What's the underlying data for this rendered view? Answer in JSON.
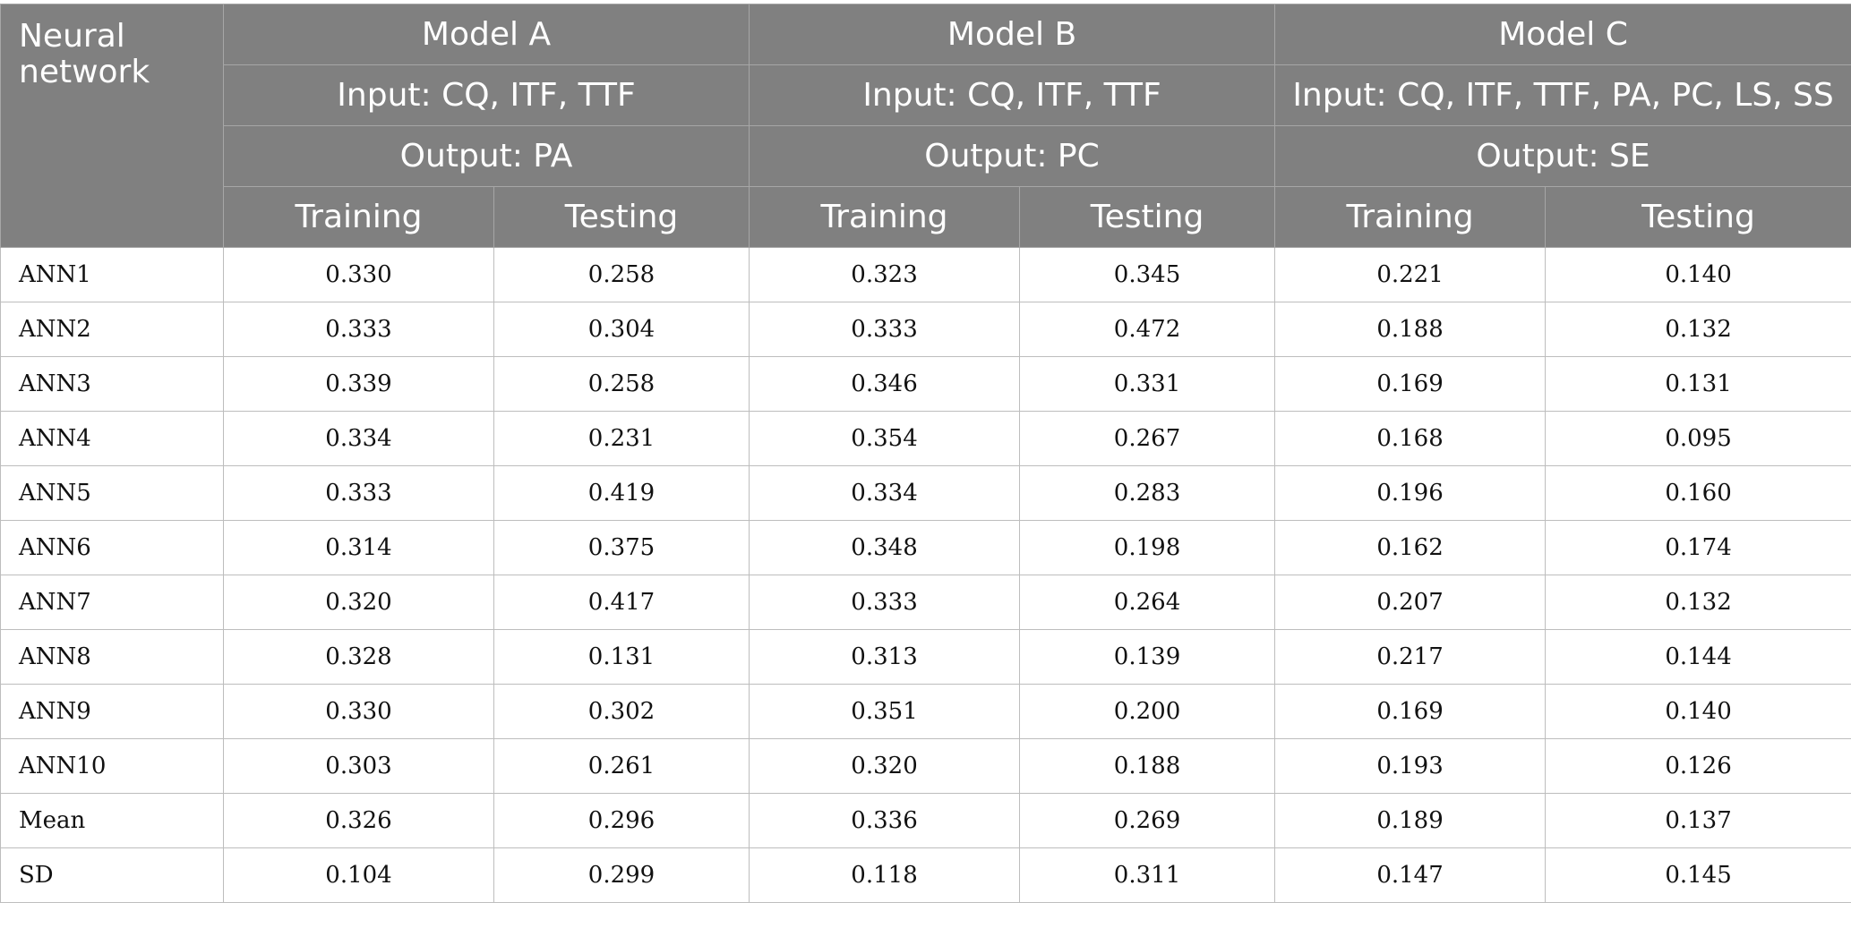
{
  "header": {
    "corner_label": "Neural network",
    "models": [
      {
        "name": "Model A",
        "input": "Input: CQ, ITF, TTF",
        "output": "Output: PA"
      },
      {
        "name": "Model B",
        "input": "Input: CQ, ITF, TTF",
        "output": "Output: PC"
      },
      {
        "name": "Model C",
        "input": "Input: CQ, ITF, TTF, PA, PC, LS, SS",
        "output": "Output: SE"
      }
    ],
    "sub_columns": [
      "Training",
      "Testing",
      "Training",
      "Testing",
      "Training",
      "Testing"
    ]
  },
  "rows": [
    {
      "label": "ANN1",
      "values": [
        "0.330",
        "0.258",
        "0.323",
        "0.345",
        "0.221",
        "0.140"
      ]
    },
    {
      "label": "ANN2",
      "values": [
        "0.333",
        "0.304",
        "0.333",
        "0.472",
        "0.188",
        "0.132"
      ]
    },
    {
      "label": "ANN3",
      "values": [
        "0.339",
        "0.258",
        "0.346",
        "0.331",
        "0.169",
        "0.131"
      ]
    },
    {
      "label": "ANN4",
      "values": [
        "0.334",
        "0.231",
        "0.354",
        "0.267",
        "0.168",
        "0.095"
      ]
    },
    {
      "label": "ANN5",
      "values": [
        "0.333",
        "0.419",
        "0.334",
        "0.283",
        "0.196",
        "0.160"
      ]
    },
    {
      "label": "ANN6",
      "values": [
        "0.314",
        "0.375",
        "0.348",
        "0.198",
        "0.162",
        "0.174"
      ]
    },
    {
      "label": "ANN7",
      "values": [
        "0.320",
        "0.417",
        "0.333",
        "0.264",
        "0.207",
        "0.132"
      ]
    },
    {
      "label": "ANN8",
      "values": [
        "0.328",
        "0.131",
        "0.313",
        "0.139",
        "0.217",
        "0.144"
      ]
    },
    {
      "label": "ANN9",
      "values": [
        "0.330",
        "0.302",
        "0.351",
        "0.200",
        "0.169",
        "0.140"
      ]
    },
    {
      "label": "ANN10",
      "values": [
        "0.303",
        "0.261",
        "0.320",
        "0.188",
        "0.193",
        "0.126"
      ]
    },
    {
      "label": "Mean",
      "values": [
        "0.326",
        "0.296",
        "0.336",
        "0.269",
        "0.189",
        "0.137"
      ]
    },
    {
      "label": "SD",
      "values": [
        "0.104",
        "0.299",
        "0.118",
        "0.311",
        "0.147",
        "0.145"
      ]
    }
  ]
}
